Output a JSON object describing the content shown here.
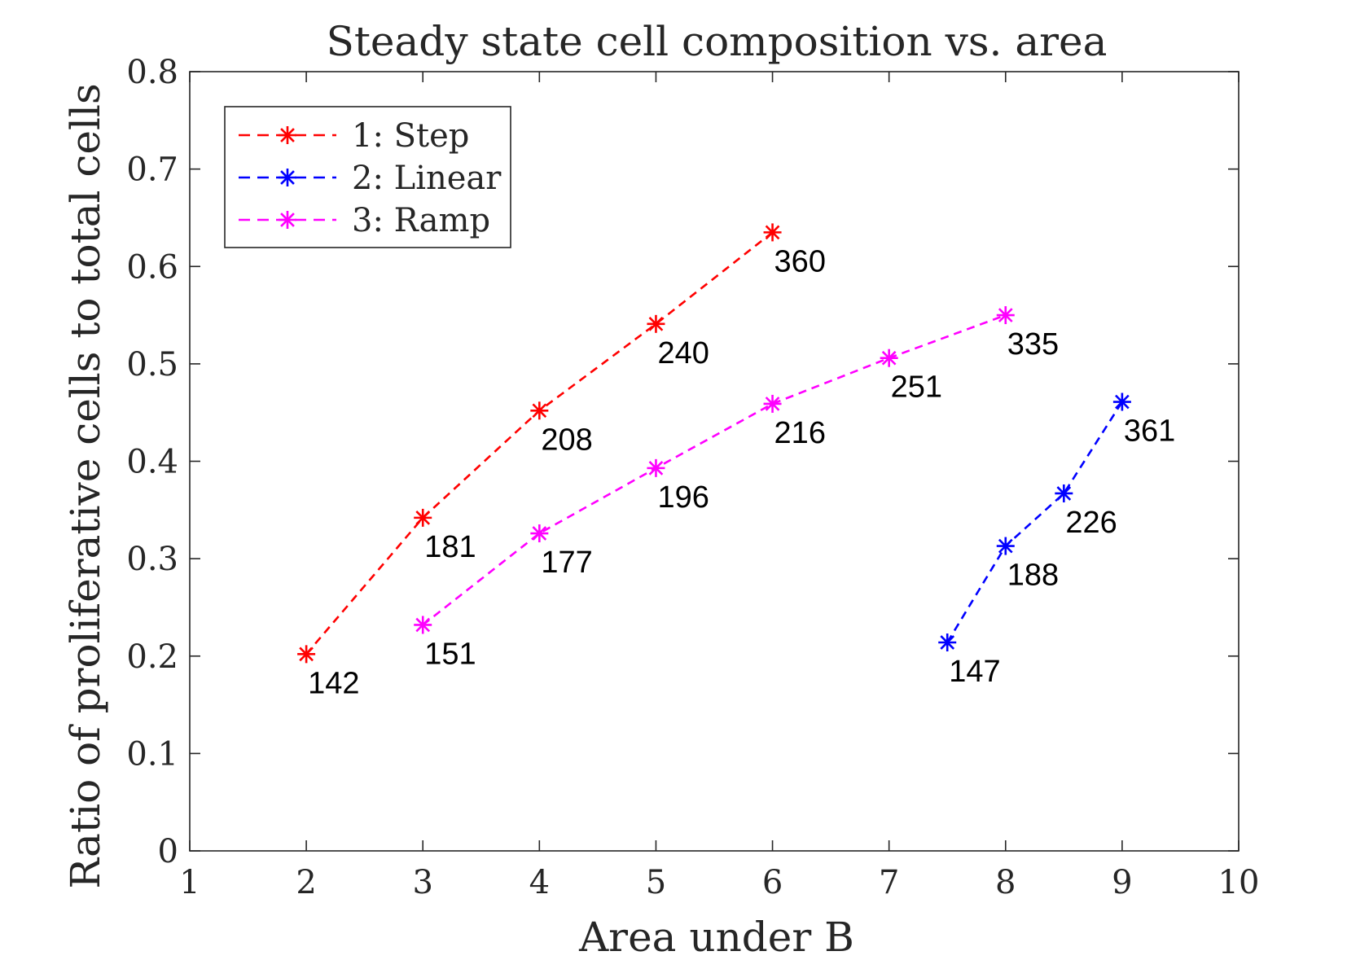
{
  "chart_data": {
    "type": "line",
    "title": "Steady state cell composition vs. area",
    "xlabel": "Area under B",
    "ylabel": "Ratio of proliferative cells to total cells",
    "xlim": [
      1,
      10
    ],
    "ylim": [
      0,
      0.8
    ],
    "xticks": [
      1,
      2,
      3,
      4,
      5,
      6,
      7,
      8,
      9,
      10
    ],
    "yticks": [
      0,
      0.1,
      0.2,
      0.3,
      0.4,
      0.5,
      0.6,
      0.7,
      0.8
    ],
    "grid": false,
    "legend_position": "top-left",
    "series": [
      {
        "name": "1: Step",
        "color": "#ff0000",
        "line_style": "dashed",
        "marker": "asterisk",
        "x": [
          2,
          3,
          4,
          5,
          6
        ],
        "y": [
          0.202,
          0.342,
          0.452,
          0.541,
          0.635
        ],
        "point_labels": [
          "142",
          "181",
          "208",
          "240",
          "360"
        ]
      },
      {
        "name": "2: Linear",
        "color": "#0000ff",
        "line_style": "dashed",
        "marker": "asterisk",
        "x": [
          7.5,
          8,
          8.5,
          9
        ],
        "y": [
          0.214,
          0.313,
          0.367,
          0.461
        ],
        "point_labels": [
          "147",
          "188",
          "226",
          "361"
        ]
      },
      {
        "name": "3: Ramp",
        "color": "#ff00ff",
        "line_style": "dashed",
        "marker": "asterisk",
        "x": [
          3,
          4,
          5,
          6,
          7,
          8
        ],
        "y": [
          0.232,
          0.326,
          0.393,
          0.459,
          0.506,
          0.55
        ],
        "point_labels": [
          "151",
          "177",
          "196",
          "216",
          "251",
          "335"
        ]
      }
    ]
  }
}
